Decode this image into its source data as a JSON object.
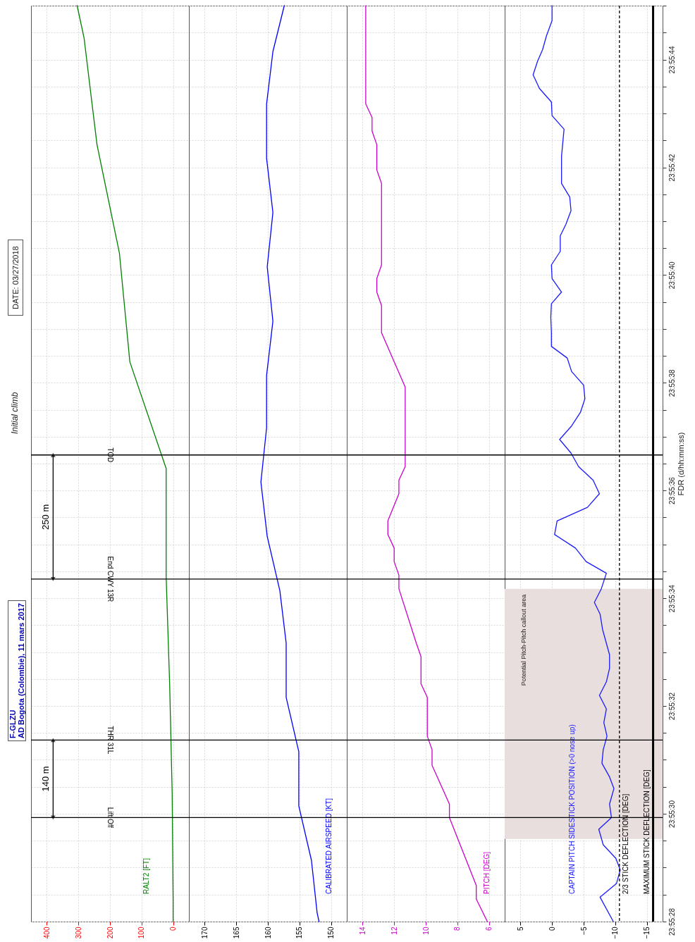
{
  "chart_data": [
    {
      "type": "line",
      "title": "F-GLZU",
      "subtitle": "AD Bogota (Colombie), 11 mars 2017",
      "annotations": [
        "Initial climb",
        "DATE: 03/27/2018",
        "140 m",
        "250 m"
      ],
      "xlim": [
        450,
        -50
      ],
      "xticks": [
        0,
        100,
        200,
        300,
        400
      ],
      "ylim": [
        23.924444,
        23.929167
      ],
      "yticks": [
        23.924444,
        23.924583,
        23.924722,
        23.924861,
        23.925,
        23.925139,
        23.925278,
        23.925417,
        23.925556,
        23.925694,
        23.925833,
        23.925972,
        23.926111,
        23.92625,
        23.926389,
        23.926528,
        23.926667,
        23.926806,
        23.926944,
        23.927083,
        23.927222,
        23.927361,
        23.9275,
        23.927639,
        23.927778,
        23.927917,
        23.928056,
        23.928194,
        23.928333,
        23.928472,
        23.928611,
        23.92875,
        23.928889,
        23.929028,
        23.929167
      ],
      "grid": true,
      "tick_labels": "x",
      "series": [
        {
          "name": "RALT2 [FT]",
          "color": "#008000",
          "x": [
            0,
            0,
            3,
            11,
            22,
            22,
            137,
            170,
            241,
            282,
            304
          ],
          "values": [
            23.924444,
            23.92455,
            23.92511,
            23.92567,
            23.92622,
            23.92678,
            23.92733,
            23.92789,
            23.92845,
            23.929,
            23.929167
          ]
        }
      ],
      "ref_lines": [
        {
          "axis": "y",
          "value": 23.92498,
          "label": "Lift Off"
        },
        {
          "axis": "y",
          "value": 23.92538,
          "label": "THR 31L"
        },
        {
          "axis": "y",
          "value": 23.92621,
          "label": "End CWY 13R"
        },
        {
          "axis": "y",
          "value": 23.92685,
          "label": "TOD"
        }
      ]
    },
    {
      "type": "line",
      "xlim": [
        172.5,
        147.5
      ],
      "xticks": [
        150,
        155,
        160,
        165,
        170
      ],
      "ylim": [
        23.924444,
        23.929167
      ],
      "yticks": [
        23.924444,
        23.924583,
        23.924722,
        23.924861,
        23.925,
        23.925139,
        23.925278,
        23.925417,
        23.925556,
        23.925694,
        23.925833,
        23.925972,
        23.926111,
        23.92625,
        23.926389,
        23.926528,
        23.926667,
        23.926806,
        23.926944,
        23.927083,
        23.927222,
        23.927361,
        23.9275,
        23.927639,
        23.927778,
        23.927917,
        23.928056,
        23.928194,
        23.928333,
        23.928472,
        23.928611,
        23.92875,
        23.928889,
        23.929028,
        23.929167
      ],
      "grid": true,
      "tick_labels": "x",
      "series": [
        {
          "name": "CALIBRATED AIRSPEED [KT]",
          "color": "#0000ff",
          "x": [
            151.9,
            152.2,
            153.1,
            155.1,
            155.1,
            157.1,
            157.1,
            158.1,
            160.1,
            161.1,
            160.2,
            160.2,
            159.2,
            160.1,
            159.2,
            160.2,
            160.2,
            159.2,
            157.4
          ],
          "values": [
            23.924444,
            23.92449,
            23.92476,
            23.92504,
            23.92532,
            23.9256,
            23.92588,
            23.92615,
            23.92643,
            23.92671,
            23.92699,
            23.92726,
            23.92754,
            23.92782,
            23.9281,
            23.92838,
            23.92866,
            23.92893,
            23.929167
          ]
        }
      ],
      "ref_lines": [
        {
          "axis": "y",
          "value": 23.92498
        },
        {
          "axis": "y",
          "value": 23.92538
        },
        {
          "axis": "y",
          "value": 23.92621
        },
        {
          "axis": "y",
          "value": 23.92685
        }
      ]
    },
    {
      "type": "line",
      "xlim": [
        15,
        5
      ],
      "xticks": [
        6,
        8,
        10,
        12,
        14
      ],
      "ylim": [
        23.924444,
        23.929167
      ],
      "yticks": [
        23.924444,
        23.924583,
        23.924722,
        23.924861,
        23.925,
        23.925139,
        23.925278,
        23.925417,
        23.925556,
        23.925694,
        23.925833,
        23.925972,
        23.926111,
        23.92625,
        23.926389,
        23.926528,
        23.926667,
        23.926806,
        23.926944,
        23.927083,
        23.927222,
        23.927361,
        23.9275,
        23.927639,
        23.927778,
        23.927917,
        23.928056,
        23.928194,
        23.928333,
        23.928472,
        23.928611,
        23.92875,
        23.928889,
        23.929028,
        23.929167
      ],
      "grid": true,
      "tick_labels": "x",
      "series": [
        {
          "name": "PITCH [DEG]",
          "color": "#cc00cc",
          "x": [
            6.1,
            6.8,
            6.8,
            8.5,
            8.5,
            9.6,
            9.6,
            9.9,
            9.9,
            10.3,
            10.3,
            10.6,
            11.7,
            11.7,
            12.0,
            12.0,
            12.4,
            12.4,
            11.7,
            11.7,
            11.3,
            11.3,
            12.8,
            12.8,
            13.1,
            13.1,
            12.8,
            12.8,
            13.1,
            13.1,
            13.4,
            13.4,
            13.8,
            13.8
          ],
          "values": [
            23.924444,
            23.92456,
            23.92463,
            23.92498,
            23.92505,
            23.92525,
            23.92533,
            23.9254,
            23.9256,
            23.92567,
            23.92581,
            23.92588,
            23.92616,
            23.92623,
            23.9263,
            23.92637,
            23.92644,
            23.92651,
            23.92665,
            23.92672,
            23.92679,
            23.9272,
            23.92748,
            23.92762,
            23.92769,
            23.92776,
            23.92783,
            23.92825,
            23.92832,
            23.92845,
            23.92852,
            23.92859,
            23.92866,
            23.929167
          ]
        }
      ],
      "ref_lines": [
        {
          "axis": "y",
          "value": 23.92498
        },
        {
          "axis": "y",
          "value": 23.92538
        },
        {
          "axis": "y",
          "value": 23.92621
        },
        {
          "axis": "y",
          "value": 23.92685
        }
      ]
    },
    {
      "type": "line",
      "ylabel": "FDR (d/hh:mm:ss)",
      "xlim": [
        7.5,
        -17.5
      ],
      "xticks": [
        -15,
        -10,
        -5,
        0,
        5
      ],
      "ylim": [
        23.924444,
        23.929167
      ],
      "yticks": [
        {
          "value": 23.924444,
          "label": "23:55:28"
        },
        {
          "value": 23.924583,
          "label": null
        },
        {
          "value": 23.924722,
          "label": null
        },
        {
          "value": 23.924861,
          "label": null
        },
        {
          "value": 23.925,
          "label": "23:55:30"
        },
        {
          "value": 23.925139,
          "label": null
        },
        {
          "value": 23.925278,
          "label": null
        },
        {
          "value": 23.925417,
          "label": null
        },
        {
          "value": 23.925556,
          "label": "23:55:32"
        },
        {
          "value": 23.925694,
          "label": null
        },
        {
          "value": 23.925833,
          "label": null
        },
        {
          "value": 23.925972,
          "label": null
        },
        {
          "value": 23.926111,
          "label": "23:55:34"
        },
        {
          "value": 23.92625,
          "label": null
        },
        {
          "value": 23.926389,
          "label": null
        },
        {
          "value": 23.926528,
          "label": null
        },
        {
          "value": 23.926667,
          "label": "23:55:36"
        },
        {
          "value": 23.926806,
          "label": null
        },
        {
          "value": 23.926944,
          "label": null
        },
        {
          "value": 23.927083,
          "label": null
        },
        {
          "value": 23.927222,
          "label": "23:55:38"
        },
        {
          "value": 23.927361,
          "label": null
        },
        {
          "value": 23.9275,
          "label": null
        },
        {
          "value": 23.927639,
          "label": null
        },
        {
          "value": 23.927778,
          "label": "23:55:40"
        },
        {
          "value": 23.927917,
          "label": null
        },
        {
          "value": 23.928056,
          "label": null
        },
        {
          "value": 23.928194,
          "label": null
        },
        {
          "value": 23.928333,
          "label": "23:55:42"
        },
        {
          "value": 23.928472,
          "label": null
        },
        {
          "value": 23.928611,
          "label": null
        },
        {
          "value": 23.92875,
          "label": null
        },
        {
          "value": 23.928889,
          "label": "23:55:44"
        },
        {
          "value": 23.929028,
          "label": null
        },
        {
          "value": 23.929167,
          "label": null
        }
      ],
      "grid": true,
      "series": [
        {
          "name": "CAPTAIN PITCH SIDESTICK POSITION (>0 nose up)",
          "color": "#1a1aff",
          "x": [
            -9.7,
            -7.6,
            -10.2,
            -10.8,
            -10.1,
            -8.1,
            -7.4,
            -9.4,
            -9.1,
            -9.8,
            -9.1,
            -7.9,
            -8.1,
            -8.7,
            -8.2,
            -8.6,
            -7.5,
            -8.6,
            -9.1,
            -9.1,
            -8.0,
            -7.6,
            -6.7,
            -7.8,
            -8.6,
            -5.4,
            -3.7,
            -0.4,
            -0.8,
            -5.6,
            -7.5,
            -6.5,
            -4.2,
            -3.0,
            -1.2,
            -3.1,
            -4.5,
            -5.2,
            -5.0,
            -3.1,
            -2.4,
            0.1,
            0.1,
            0.2,
            0.1,
            -1.5,
            0.0,
            0.1,
            -1.3,
            -1.3,
            -2.2,
            -3.0,
            -2.8,
            -1.5,
            -1.5,
            -1.5,
            -1.7,
            -1.9,
            0.0,
            0.1,
            2.0,
            3.0,
            2.3,
            1.5,
            0.9,
            0.0,
            0.0
          ],
          "values": [
            23.924444,
            23.92457,
            23.92464,
            23.92471,
            23.92477,
            23.92484,
            23.92492,
            23.92498,
            23.92505,
            23.92513,
            23.92519,
            23.92526,
            23.92533,
            23.9254,
            23.92547,
            23.92554,
            23.92561,
            23.92568,
            23.92575,
            23.92582,
            23.92595,
            23.92603,
            23.92609,
            23.92616,
            23.92624,
            23.9263,
            23.92637,
            23.92644,
            23.92651,
            23.92658,
            23.92665,
            23.92672,
            23.92679,
            23.92686,
            23.92693,
            23.927,
            23.92707,
            23.92714,
            23.92721,
            23.92728,
            23.92735,
            23.92741,
            23.92748,
            23.92756,
            23.92763,
            23.92769,
            23.92776,
            23.92783,
            23.9279,
            23.92798,
            23.92804,
            23.92811,
            23.92818,
            23.92825,
            23.92832,
            23.92839,
            23.92846,
            23.92853,
            23.9286,
            23.92867,
            23.92874,
            23.92881,
            23.92888,
            23.92894,
            23.92901,
            23.92909,
            23.929167
          ]
        }
      ],
      "ref_lines": [
        {
          "axis": "y",
          "value": 23.92498
        },
        {
          "axis": "y",
          "value": 23.92538
        },
        {
          "axis": "y",
          "value": 23.92621
        },
        {
          "axis": "y",
          "value": 23.92685
        },
        {
          "axis": "x",
          "value": -10.67,
          "label": "2/3 STICK DEFLECTION [DEG]",
          "color": "#000000",
          "line_style": "dashed"
        },
        {
          "axis": "x",
          "value": -16,
          "label": "MAXIMUM STICK DEFLECTION [DEG]",
          "color": "#000000",
          "line_style": "solid"
        }
      ],
      "bands": [
        {
          "axis": "y",
          "from": 23.92487,
          "to": 23.92616,
          "label": "Potential Pitch-Pitch callout area",
          "color": "#e8dede"
        }
      ]
    }
  ]
}
